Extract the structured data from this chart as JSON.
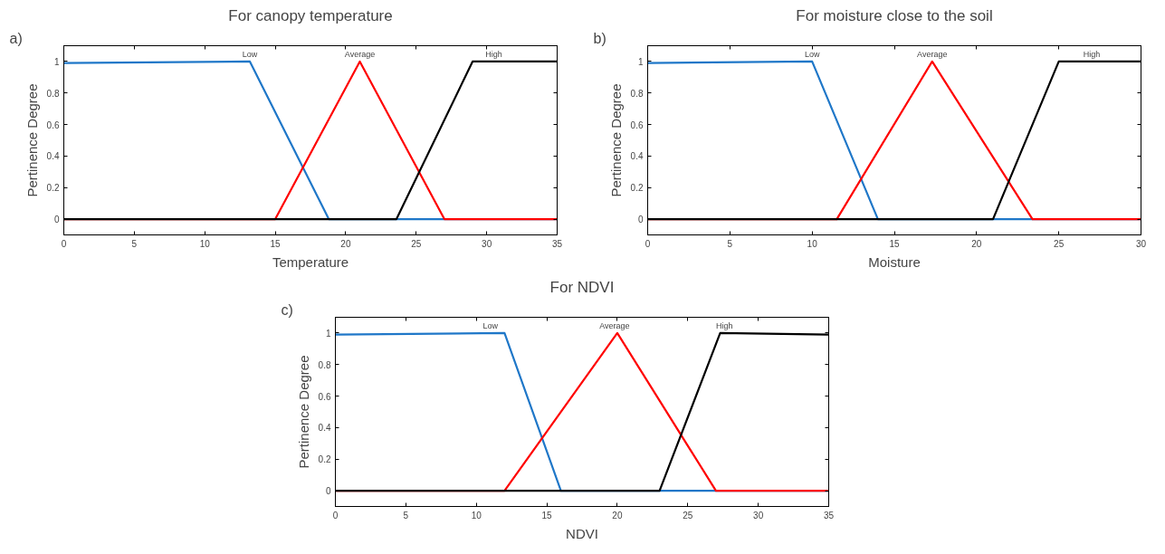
{
  "chart_data": [
    {
      "type": "line",
      "title": "For canopy temperature",
      "xlabel": "Temperature",
      "ylabel": "Pertinence Degree",
      "xlim": [
        0,
        35
      ],
      "xticks": [
        0,
        5,
        10,
        15,
        20,
        25,
        30,
        35
      ],
      "ylim": [
        -0.1,
        1.1
      ],
      "yticks": [
        0,
        0.2,
        0.4,
        0.6,
        0.8,
        1
      ],
      "grid": false,
      "marker": "none",
      "line_style": "solid",
      "annotations": [
        "a)",
        {
          "text": "Low",
          "x": 13.2,
          "y": 1
        },
        {
          "text": "Average",
          "x": 21,
          "y": 1
        },
        {
          "text": "High",
          "x": 30.5,
          "y": 1
        }
      ],
      "series": [
        {
          "color": "#1f77c8",
          "x": [
            0,
            13.2,
            18.8,
            35
          ],
          "values": [
            0.99,
            1,
            0,
            0
          ]
        },
        {
          "color": "#ff0000",
          "x": [
            0,
            15,
            21,
            27,
            35
          ],
          "values": [
            0,
            0,
            1,
            0,
            0
          ]
        },
        {
          "color": "#000000",
          "x": [
            0,
            23.6,
            29,
            35
          ],
          "values": [
            0,
            0,
            1,
            1
          ]
        }
      ]
    },
    {
      "type": "line",
      "title": "For moisture close to the soil",
      "xlabel": "Moisture",
      "ylabel": "Pertinence Degree",
      "xlim": [
        0,
        30
      ],
      "xticks": [
        0,
        5,
        10,
        15,
        20,
        25,
        30
      ],
      "ylim": [
        -0.1,
        1.1
      ],
      "yticks": [
        0,
        0.2,
        0.4,
        0.6,
        0.8,
        1
      ],
      "grid": false,
      "marker": "none",
      "line_style": "solid",
      "annotations": [
        "b)",
        {
          "text": "Low",
          "x": 10,
          "y": 1
        },
        {
          "text": "Average",
          "x": 17.3,
          "y": 1
        },
        {
          "text": "High",
          "x": 27,
          "y": 1
        }
      ],
      "series": [
        {
          "color": "#1f77c8",
          "x": [
            0,
            10,
            14,
            30
          ],
          "values": [
            0.99,
            1,
            0,
            0
          ]
        },
        {
          "color": "#ff0000",
          "x": [
            0,
            11.5,
            17.3,
            23.4,
            30
          ],
          "values": [
            0,
            0,
            1,
            0,
            0
          ]
        },
        {
          "color": "#000000",
          "x": [
            0,
            21,
            25,
            30
          ],
          "values": [
            0,
            0,
            1,
            1
          ]
        }
      ]
    },
    {
      "type": "line",
      "title": "For NDVI",
      "xlabel": "NDVI",
      "ylabel": "Pertinence Degree",
      "xlim": [
        0,
        35
      ],
      "xticks": [
        0,
        5,
        10,
        15,
        20,
        25,
        30,
        35
      ],
      "ylim": [
        -0.1,
        1.1
      ],
      "yticks": [
        0,
        0.2,
        0.4,
        0.6,
        0.8,
        1
      ],
      "grid": false,
      "marker": "none",
      "line_style": "solid",
      "annotations": [
        "c)",
        {
          "text": "Low",
          "x": 11,
          "y": 1
        },
        {
          "text": "Average",
          "x": 19.8,
          "y": 1
        },
        {
          "text": "High",
          "x": 27.6,
          "y": 1
        }
      ],
      "series": [
        {
          "color": "#1f77c8",
          "x": [
            0,
            12,
            16,
            35
          ],
          "values": [
            0.99,
            1,
            0,
            0
          ]
        },
        {
          "color": "#ff0000",
          "x": [
            0,
            12,
            20,
            27,
            35
          ],
          "values": [
            0,
            0,
            1,
            0,
            0
          ]
        },
        {
          "color": "#000000",
          "x": [
            0,
            23,
            27.3,
            35
          ],
          "values": [
            0,
            0,
            1,
            0.99
          ]
        }
      ]
    }
  ]
}
